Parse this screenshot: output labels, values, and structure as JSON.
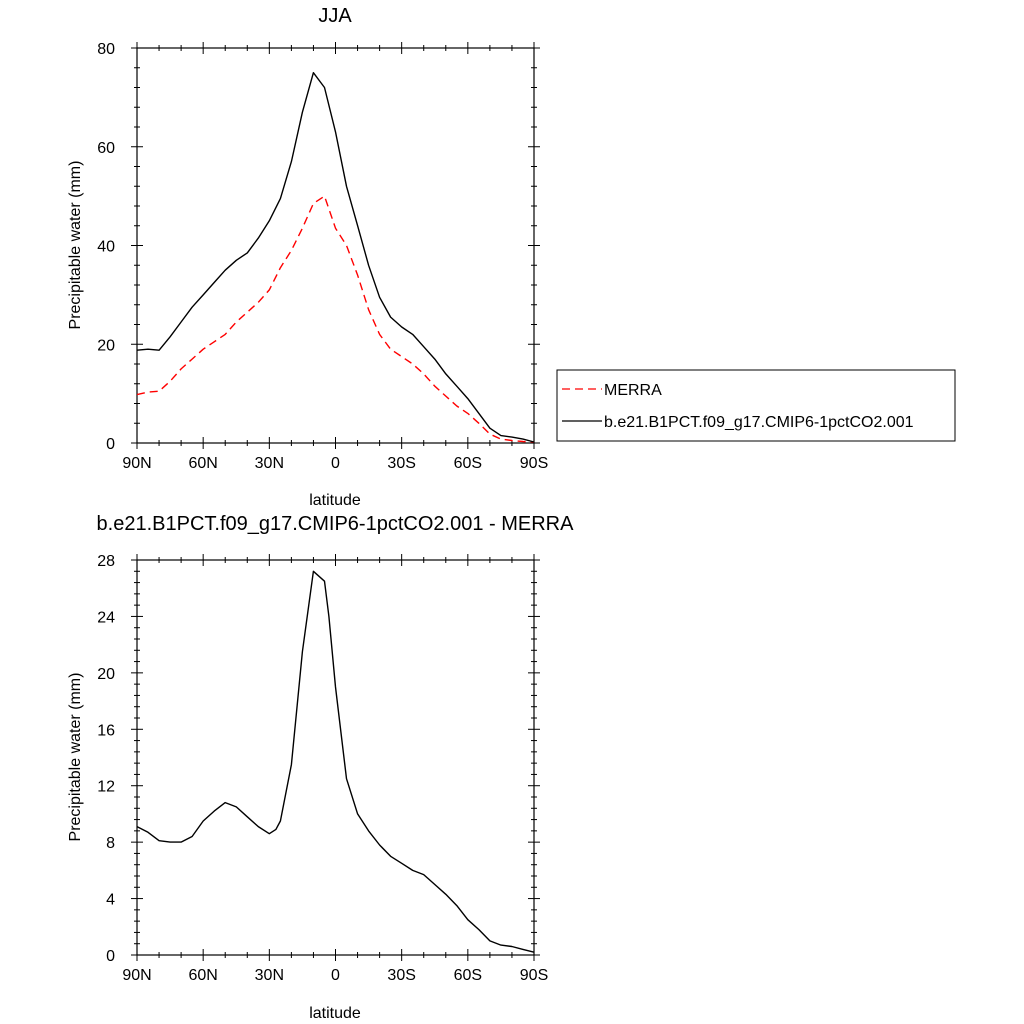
{
  "chart_data": [
    {
      "type": "line",
      "title": "JJA",
      "xlabel": "latitude",
      "ylabel": "Precipitable water (mm)",
      "xlim": [
        90,
        -90
      ],
      "ylim": [
        0,
        80
      ],
      "xtick_values": [
        90,
        60,
        30,
        0,
        -30,
        -60,
        -90
      ],
      "xtick_labels": [
        "90N",
        "60N",
        "30N",
        "0",
        "30S",
        "60S",
        "90S"
      ],
      "ytick_values": [
        0,
        20,
        40,
        60,
        80
      ],
      "ytick_labels": [
        "0",
        "20",
        "40",
        "60",
        "80"
      ],
      "legend_position": "right",
      "series": [
        {
          "name": "MERRA",
          "color": "#ff0000",
          "dash": "dashed",
          "x": [
            90,
            85,
            80,
            75,
            70,
            65,
            60,
            55,
            50,
            45,
            40,
            35,
            30,
            25,
            20,
            15,
            10,
            5,
            0,
            -5,
            -10,
            -15,
            -20,
            -25,
            -30,
            -35,
            -40,
            -45,
            -50,
            -55,
            -60,
            -65,
            -70,
            -75,
            -80,
            -85,
            -90
          ],
          "y": [
            9.8,
            10.3,
            10.5,
            12.5,
            15.0,
            17.0,
            19.0,
            20.5,
            22.0,
            24.5,
            26.5,
            28.5,
            31.0,
            35.5,
            39.0,
            43.5,
            48.5,
            50.0,
            43.5,
            40.0,
            34.0,
            27.0,
            22.0,
            19.0,
            17.5,
            16.0,
            14.0,
            11.5,
            9.5,
            7.5,
            6.0,
            4.0,
            1.8,
            0.8,
            0.5,
            0.3,
            0.2
          ]
        },
        {
          "name": "b.e21.B1PCT.f09_g17.CMIP6-1pctCO2.001",
          "color": "#000000",
          "dash": "solid",
          "x": [
            90,
            85,
            80,
            75,
            70,
            65,
            60,
            55,
            50,
            45,
            40,
            35,
            30,
            25,
            20,
            15,
            10,
            5,
            0,
            -5,
            -10,
            -15,
            -20,
            -25,
            -30,
            -35,
            -40,
            -45,
            -50,
            -55,
            -60,
            -65,
            -70,
            -75,
            -80,
            -85,
            -90
          ],
          "y": [
            18.8,
            19.0,
            18.8,
            21.5,
            24.5,
            27.5,
            30.0,
            32.5,
            35.0,
            37.0,
            38.5,
            41.5,
            45.0,
            49.5,
            57.0,
            67.0,
            75.0,
            72.0,
            63.0,
            52.0,
            44.0,
            36.0,
            29.5,
            25.5,
            23.5,
            22.0,
            19.5,
            17.0,
            14.0,
            11.5,
            9.0,
            6.0,
            3.0,
            1.5,
            1.2,
            0.8,
            0.2
          ]
        }
      ]
    },
    {
      "type": "line",
      "title": "b.e21.B1PCT.f09_g17.CMIP6-1pctCO2.001 - MERRA",
      "xlabel": "latitude",
      "ylabel": "Precipitable water (mm)",
      "xlim": [
        90,
        -90
      ],
      "ylim": [
        0,
        28
      ],
      "xtick_values": [
        90,
        60,
        30,
        0,
        -30,
        -60,
        -90
      ],
      "xtick_labels": [
        "90N",
        "60N",
        "30N",
        "0",
        "30S",
        "60S",
        "90S"
      ],
      "ytick_values": [
        0,
        4,
        8,
        12,
        16,
        20,
        24,
        28
      ],
      "ytick_labels": [
        "0",
        "4",
        "8",
        "12",
        "16",
        "20",
        "24",
        "28"
      ],
      "series": [
        {
          "color": "#000000",
          "dash": "solid",
          "x": [
            90,
            85,
            80,
            75,
            70,
            65,
            60,
            55,
            50,
            45,
            40,
            35,
            30,
            27,
            25,
            20,
            15,
            10,
            5,
            3,
            0,
            -5,
            -10,
            -15,
            -20,
            -25,
            -30,
            -35,
            -40,
            -45,
            -50,
            -55,
            -60,
            -65,
            -70,
            -75,
            -80,
            -85,
            -90
          ],
          "y": [
            9.1,
            8.7,
            8.1,
            8.0,
            8.0,
            8.4,
            9.5,
            10.2,
            10.8,
            10.5,
            9.8,
            9.1,
            8.6,
            8.9,
            9.5,
            13.5,
            21.5,
            27.2,
            26.5,
            24.0,
            19.0,
            12.5,
            10.0,
            8.8,
            7.8,
            7.0,
            6.5,
            6.0,
            5.7,
            5.0,
            4.3,
            3.5,
            2.5,
            1.8,
            1.0,
            0.7,
            0.6,
            0.4,
            0.2
          ]
        }
      ]
    }
  ]
}
